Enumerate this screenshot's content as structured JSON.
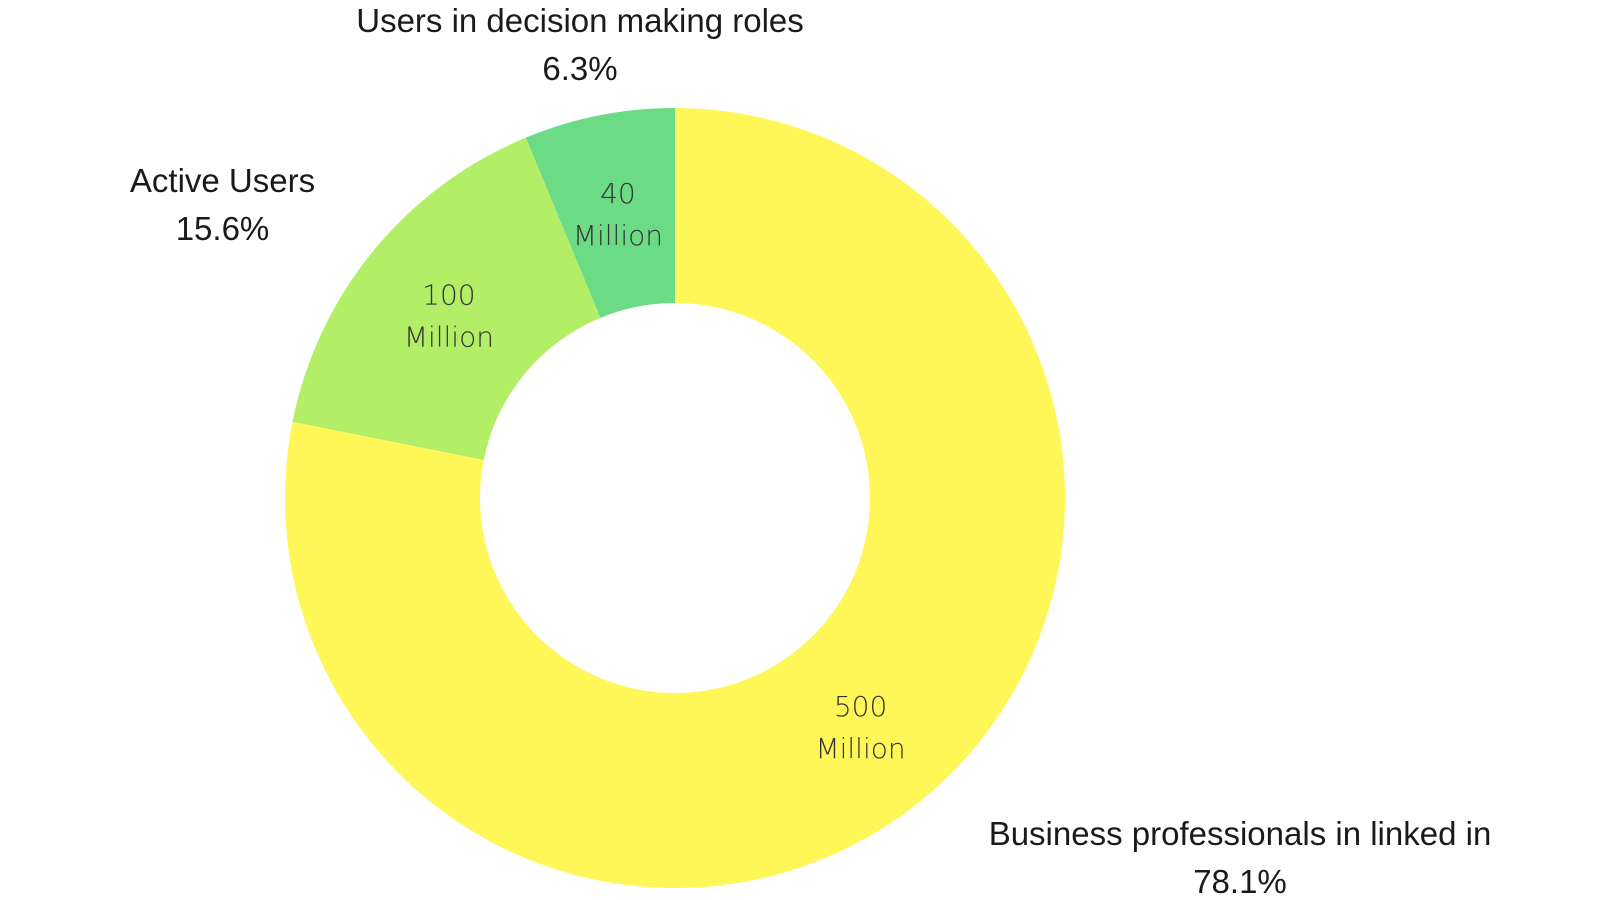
{
  "chart_data": {
    "type": "pie",
    "donut": true,
    "slices": [
      {
        "id": "decision",
        "name": "Users in decision making roles",
        "value": 40,
        "value_line1": "40",
        "value_line2": "Million",
        "percent_label": "6.3%",
        "color": "#6bdc85"
      },
      {
        "id": "active",
        "name": "Active Users",
        "value": 100,
        "value_line1": "100",
        "value_line2": "Million",
        "percent_label": "15.6%",
        "color": "#b2ee66"
      },
      {
        "id": "business",
        "name": "Business professionals in linked in",
        "value": 500,
        "value_line1": "500",
        "value_line2": "Million",
        "percent_label": "78.1%",
        "color": "#fff757"
      }
    ]
  }
}
